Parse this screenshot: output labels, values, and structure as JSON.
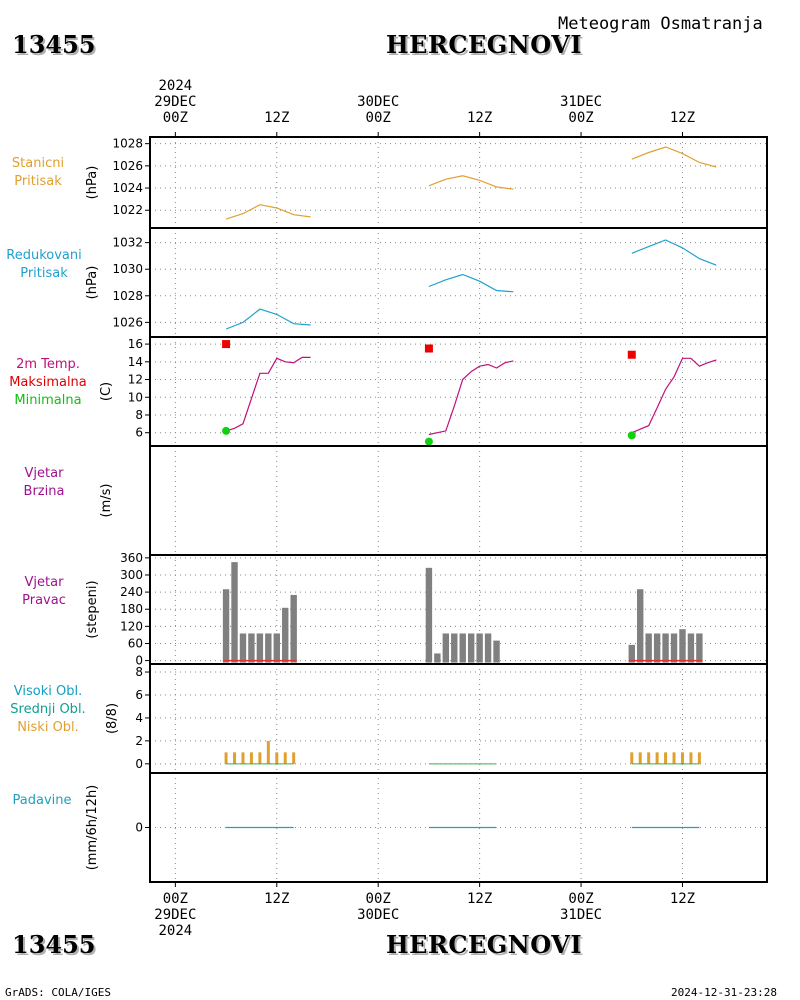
{
  "header": {
    "station_id": "13455",
    "station_name": "HERCEGNOVI",
    "subtitle": "Meteogram Osmatranja"
  },
  "time_axis": {
    "top": [
      {
        "line1": "2024",
        "line2": "29DEC",
        "line3": "00Z"
      },
      {
        "line1": "",
        "line2": "",
        "line3": "12Z"
      },
      {
        "line1": "",
        "line2": "30DEC",
        "line3": "00Z"
      },
      {
        "line1": "",
        "line2": "",
        "line3": "12Z"
      },
      {
        "line1": "",
        "line2": "31DEC",
        "line3": "00Z"
      },
      {
        "line1": "",
        "line2": "",
        "line3": "12Z"
      }
    ],
    "bottom": [
      {
        "line1": "00Z",
        "line2": "29DEC",
        "line3": "2024"
      },
      {
        "line1": "12Z",
        "line2": "",
        "line3": ""
      },
      {
        "line1": "00Z",
        "line2": "30DEC",
        "line3": ""
      },
      {
        "line1": "12Z",
        "line2": "",
        "line3": ""
      },
      {
        "line1": "00Z",
        "line2": "31DEC",
        "line3": ""
      },
      {
        "line1": "12Z",
        "line2": "",
        "line3": ""
      }
    ]
  },
  "panels": {
    "station_pressure": {
      "label": [
        "Stanicni",
        "Pritisak"
      ],
      "unit": "(hPa)",
      "color": "#e0a030"
    },
    "reduced_pressure": {
      "label": [
        "Redukovani",
        "Pritisak"
      ],
      "unit": "(hPa)",
      "color": "#20a0d0"
    },
    "temperature": {
      "label": [
        "2m Temp.",
        "Maksimalna",
        "Minimalna"
      ],
      "label_colors": [
        "#c0107a",
        "#e00000",
        "#10c010"
      ],
      "unit": "(C)"
    },
    "wind_speed": {
      "label": [
        "Vjetar",
        "Brzina"
      ],
      "unit": "(m/s)",
      "color": "#a01090"
    },
    "wind_direction": {
      "label": [
        "Vjetar",
        "Pravac"
      ],
      "unit": "(stepeni)",
      "color": "#a01090"
    },
    "clouds": {
      "label": [
        "Visoki Obl.",
        "Srednji Obl.",
        "Niski Obl."
      ],
      "label_colors": [
        "#10a0c0",
        "#10a090",
        "#e0a030"
      ],
      "unit": "(8/8)"
    },
    "precipitation": {
      "label": [
        "Padavine"
      ],
      "unit": "(mm/6h/12h)",
      "color": "#20a0c0"
    }
  },
  "footer": {
    "left": "GrADS: COLA/IGES",
    "right": "2024-12-31-23:28"
  },
  "chart_data": [
    {
      "type": "line",
      "name": "station_pressure",
      "ylabel": "(hPa)",
      "ylim": [
        1020.4,
        1028.6
      ],
      "yticks": [
        1022,
        1024,
        1026,
        1028
      ],
      "xlim": [
        -3,
        70
      ],
      "x_unit": "hours since 2024-12-29 00Z",
      "segments": [
        {
          "x": [
            6,
            8,
            10,
            12,
            14,
            16
          ],
          "y": [
            1021.2,
            1021.7,
            1022.5,
            1022.2,
            1021.6,
            1021.4
          ]
        },
        {
          "x": [
            30,
            32,
            34,
            36,
            38,
            40
          ],
          "y": [
            1024.2,
            1024.8,
            1025.1,
            1024.7,
            1024.1,
            1023.9
          ]
        },
        {
          "x": [
            54,
            56,
            58,
            60,
            62,
            64
          ],
          "y": [
            1026.6,
            1027.2,
            1027.7,
            1027.1,
            1026.3,
            1025.9
          ]
        }
      ],
      "grid": true
    },
    {
      "type": "line",
      "name": "reduced_pressure",
      "ylabel": "(hPa)",
      "ylim": [
        1024.9,
        1033.1
      ],
      "yticks": [
        1026,
        1028,
        1030,
        1032
      ],
      "segments": [
        {
          "x": [
            6,
            8,
            10,
            12,
            14,
            16
          ],
          "y": [
            1025.5,
            1026.0,
            1027.0,
            1026.6,
            1025.9,
            1025.8
          ]
        },
        {
          "x": [
            30,
            32,
            34,
            36,
            38,
            40
          ],
          "y": [
            1028.7,
            1029.2,
            1029.6,
            1029.1,
            1028.4,
            1028.3
          ]
        },
        {
          "x": [
            54,
            56,
            58,
            60,
            62,
            64
          ],
          "y": [
            1031.2,
            1031.7,
            1032.2,
            1031.6,
            1030.8,
            1030.3
          ]
        }
      ],
      "grid": true
    },
    {
      "type": "line",
      "name": "temperature",
      "ylabel": "(C)",
      "ylim": [
        4.5,
        16.8
      ],
      "yticks": [
        6,
        8,
        10,
        12,
        14,
        16
      ],
      "segments": [
        {
          "x": [
            6,
            7,
            8,
            10,
            11,
            12,
            13,
            14,
            15,
            16
          ],
          "y": [
            6.2,
            6.5,
            7.0,
            12.7,
            12.7,
            14.4,
            14.0,
            13.9,
            14.5,
            14.5
          ]
        },
        {
          "x": [
            30,
            31,
            32,
            33,
            34,
            35,
            36,
            37,
            38,
            39,
            40
          ],
          "y": [
            5.8,
            6.0,
            6.2,
            9.0,
            12.0,
            12.9,
            13.5,
            13.7,
            13.3,
            13.9,
            14.1
          ]
        },
        {
          "x": [
            54,
            55,
            56,
            57,
            58,
            59,
            60,
            61,
            62,
            63,
            64
          ],
          "y": [
            6.0,
            6.4,
            6.8,
            8.8,
            10.9,
            12.3,
            14.4,
            14.4,
            13.5,
            13.9,
            14.2
          ]
        }
      ],
      "max_points": [
        {
          "x": 6,
          "y": 16.0
        },
        {
          "x": 30,
          "y": 15.5
        },
        {
          "x": 54,
          "y": 14.8
        }
      ],
      "min_points": [
        {
          "x": 6,
          "y": 6.2
        },
        {
          "x": 30,
          "y": 5.0
        },
        {
          "x": 54,
          "y": 5.7
        }
      ],
      "grid": true
    },
    {
      "type": "line",
      "name": "wind_speed",
      "ylabel": "(m/s)",
      "segments": [],
      "grid": true
    },
    {
      "type": "bar",
      "name": "wind_direction",
      "ylabel": "(stepeni)",
      "ylim": [
        -12,
        370
      ],
      "yticks": [
        0,
        60,
        120,
        180,
        240,
        300,
        360
      ],
      "bars": [
        {
          "x": 6,
          "y": 250
        },
        {
          "x": 7,
          "y": 345
        },
        {
          "x": 8,
          "y": 95
        },
        {
          "x": 9,
          "y": 95
        },
        {
          "x": 10,
          "y": 95
        },
        {
          "x": 11,
          "y": 95
        },
        {
          "x": 12,
          "y": 95
        },
        {
          "x": 13,
          "y": 185
        },
        {
          "x": 14,
          "y": 230
        },
        {
          "x": 30,
          "y": 325
        },
        {
          "x": 31,
          "y": 25
        },
        {
          "x": 32,
          "y": 95
        },
        {
          "x": 33,
          "y": 95
        },
        {
          "x": 34,
          "y": 95
        },
        {
          "x": 35,
          "y": 95
        },
        {
          "x": 36,
          "y": 95
        },
        {
          "x": 37,
          "y": 95
        },
        {
          "x": 38,
          "y": 70
        },
        {
          "x": 54,
          "y": 55
        },
        {
          "x": 55,
          "y": 250
        },
        {
          "x": 56,
          "y": 95
        },
        {
          "x": 57,
          "y": 95
        },
        {
          "x": 58,
          "y": 95
        },
        {
          "x": 59,
          "y": 95
        },
        {
          "x": 60,
          "y": 110
        },
        {
          "x": 61,
          "y": 95
        },
        {
          "x": 62,
          "y": 95
        }
      ],
      "baseline_segments": [
        [
          6,
          14
        ],
        [
          54,
          62
        ]
      ],
      "grid": true
    },
    {
      "type": "bar",
      "name": "clouds",
      "ylabel": "(8/8)",
      "ylim": [
        -0.8,
        8.7
      ],
      "yticks": [
        0,
        2,
        4,
        6,
        8
      ],
      "low_cloud_bars": [
        {
          "x": 6,
          "y": 1
        },
        {
          "x": 7,
          "y": 1
        },
        {
          "x": 8,
          "y": 1
        },
        {
          "x": 9,
          "y": 1
        },
        {
          "x": 10,
          "y": 1
        },
        {
          "x": 11,
          "y": 2
        },
        {
          "x": 12,
          "y": 1
        },
        {
          "x": 13,
          "y": 1
        },
        {
          "x": 14,
          "y": 1
        },
        {
          "x": 54,
          "y": 1
        },
        {
          "x": 55,
          "y": 1
        },
        {
          "x": 56,
          "y": 1
        },
        {
          "x": 57,
          "y": 1
        },
        {
          "x": 58,
          "y": 1
        },
        {
          "x": 59,
          "y": 1
        },
        {
          "x": 60,
          "y": 1
        },
        {
          "x": 61,
          "y": 1
        },
        {
          "x": 62,
          "y": 1
        }
      ],
      "zero_segments": [
        [
          6,
          14
        ],
        [
          30,
          38
        ],
        [
          54,
          62
        ]
      ],
      "grid": true
    },
    {
      "type": "line",
      "name": "precipitation",
      "ylabel": "(mm/6h/12h)",
      "ylim": [
        -2,
        2
      ],
      "yticks": [
        0
      ],
      "segments": [
        {
          "x": [
            6,
            14
          ],
          "y": [
            0,
            0
          ]
        },
        {
          "x": [
            30,
            38
          ],
          "y": [
            0,
            0
          ]
        },
        {
          "x": [
            54,
            62
          ],
          "y": [
            0,
            0
          ]
        }
      ],
      "grid": true
    }
  ]
}
